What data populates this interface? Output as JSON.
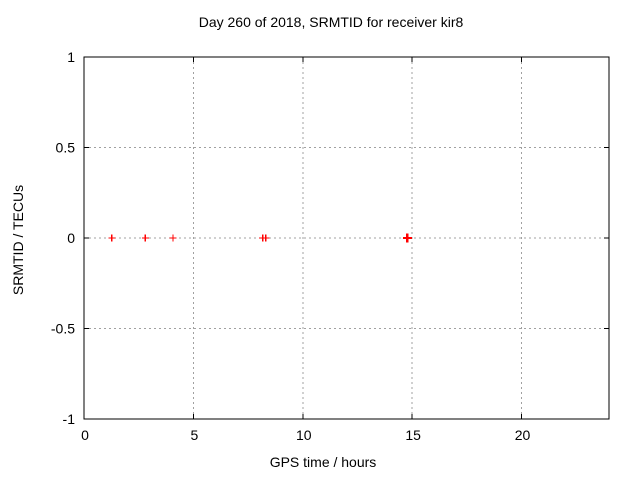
{
  "chart_data": {
    "type": "scatter",
    "title": "Day 260 of 2018, SRMTID for receiver kir8",
    "xlabel": "GPS time / hours",
    "ylabel": "SRMTID / TECUs",
    "xlim": [
      0,
      24
    ],
    "ylim": [
      -1,
      1
    ],
    "xticks": [
      0,
      5,
      10,
      15,
      20
    ],
    "xtick_labels": [
      "0",
      "5",
      "10",
      "15",
      "20"
    ],
    "yticks": [
      -1,
      -0.5,
      0,
      0.5,
      1
    ],
    "ytick_labels": [
      "-1",
      "-0.5",
      "0",
      "0.5",
      "1"
    ],
    "grid": true,
    "grid_x": [
      5,
      10,
      15,
      20
    ],
    "grid_y": [
      -0.5,
      0,
      0.5
    ],
    "legend_position": "none",
    "marker": "plus",
    "series": [
      {
        "name": "SRMTID",
        "points": [
          {
            "x": 1.27,
            "y": 0
          },
          {
            "x": 2.8,
            "y": 0
          },
          {
            "x": 4.07,
            "y": 0
          },
          {
            "x": 8.17,
            "y": 0
          },
          {
            "x": 8.31,
            "y": 0
          },
          {
            "x": 14.78,
            "y": 0,
            "bold": true
          }
        ]
      }
    ]
  },
  "colors": {
    "background": "#ffffff",
    "border": "#000000",
    "grid": "#a0a0a0",
    "marker": "#ff0000",
    "text": "#000000"
  }
}
